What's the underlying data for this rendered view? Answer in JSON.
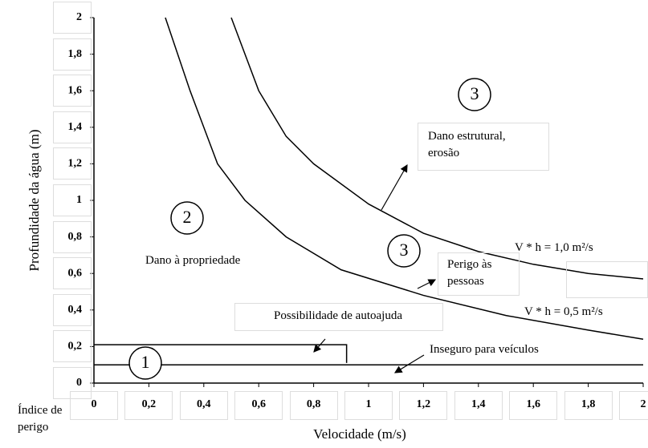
{
  "chart_data": {
    "type": "line",
    "xlabel": "Velocidade (m/s)",
    "ylabel": "Profundidade da água (m)",
    "xlim": [
      0,
      2
    ],
    "ylim": [
      0,
      2
    ],
    "xticks": [
      0,
      {
        "value": 0.2,
        "label": "0,2"
      },
      {
        "value": 0.4,
        "label": "0,4"
      },
      {
        "value": 0.6,
        "label": "0,6"
      },
      {
        "value": 0.8,
        "label": "0,8"
      },
      1,
      {
        "value": 1.2,
        "label": "1,2"
      },
      {
        "value": 1.4,
        "label": "1,4"
      },
      {
        "value": 1.6,
        "label": "1,6"
      },
      {
        "value": 1.8,
        "label": "1,8"
      },
      2
    ],
    "yticks": [
      0,
      {
        "value": 0.2,
        "label": "0,2"
      },
      {
        "value": 0.4,
        "label": "0,4"
      },
      {
        "value": 0.6,
        "label": "0,6"
      },
      {
        "value": 0.8,
        "label": "0,8"
      },
      1,
      {
        "value": 1.2,
        "label": "1,2"
      },
      {
        "value": 1.4,
        "label": "1,4"
      },
      {
        "value": 1.6,
        "label": "1,6"
      },
      {
        "value": 1.8,
        "label": "1,8"
      },
      2
    ],
    "series": [
      {
        "color": "#000000",
        "x": [
          0.5,
          0.6,
          0.7,
          0.8,
          1.0,
          1.2,
          1.4,
          1.6,
          1.8,
          2.0
        ],
        "values": [
          2,
          1.6,
          1.35,
          1.2,
          0.98,
          0.82,
          0.72,
          0.65,
          0.6,
          0.57
        ]
      },
      {
        "color": "#000000",
        "x": [
          0.26,
          0.35,
          0.45,
          0.55,
          0.7,
          0.9,
          1.2,
          1.5,
          1.8,
          2.0
        ],
        "values": [
          2,
          1.6,
          1.2,
          1.0,
          0.8,
          0.62,
          0.48,
          0.37,
          0.29,
          0.24
        ]
      },
      {
        "color": "#000000",
        "x": [
          0,
          0.92,
          0.92
        ],
        "values": [
          0.21,
          0.21,
          0.11
        ]
      },
      {
        "color": "#000000",
        "x": [
          0,
          2
        ],
        "values": [
          0.1,
          0.1
        ]
      }
    ],
    "annotations": [
      "3",
      "Dano estrutural, erosão",
      "2",
      "Dano à propriedade",
      "3",
      "Perigo às pessoas",
      "V * h = 1,0 m²/s",
      "V * h = 0,5 m²/s",
      "Possibilidade de autoajuda",
      "Inseguro para veículos",
      "1",
      "Índice de perigo"
    ]
  }
}
